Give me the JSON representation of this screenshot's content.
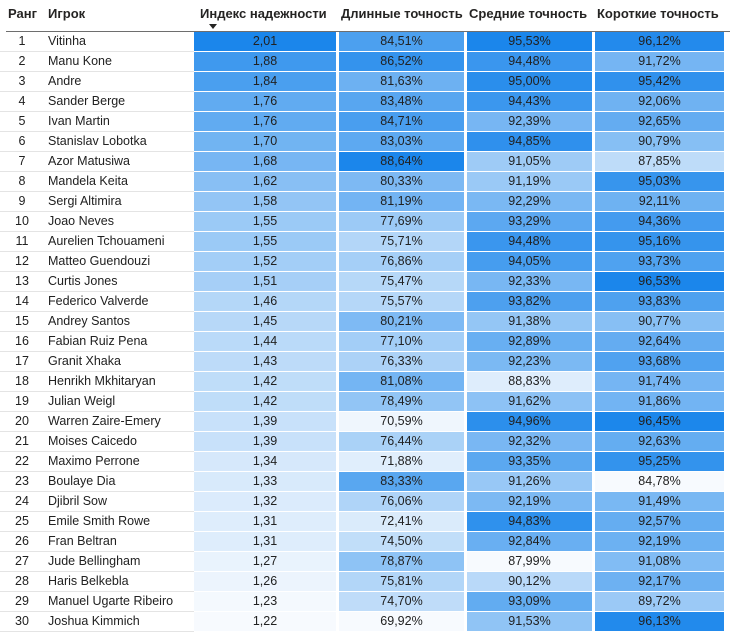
{
  "chart_data": {
    "type": "table",
    "title": "",
    "sorted_column": "Индекс надежности",
    "sort_direction": "desc",
    "columns": [
      {
        "key": "rank",
        "label": "Ранг",
        "heatmap": false
      },
      {
        "key": "player",
        "label": "Игрок",
        "heatmap": false
      },
      {
        "key": "index",
        "label": "Индекс надежности",
        "heatmap": true,
        "sorted": "desc"
      },
      {
        "key": "long",
        "label": "Длинные точность",
        "heatmap": true
      },
      {
        "key": "medium",
        "label": "Средние точность",
        "heatmap": true
      },
      {
        "key": "short",
        "label": "Короткие точность",
        "heatmap": true
      }
    ],
    "rows": [
      [
        "1",
        "Vitinha",
        "2,01",
        "84,51%",
        "95,53%",
        "96,12%"
      ],
      [
        "2",
        "Manu Kone",
        "1,88",
        "86,52%",
        "94,48%",
        "91,72%"
      ],
      [
        "3",
        "Andre",
        "1,84",
        "81,63%",
        "95,00%",
        "95,42%"
      ],
      [
        "4",
        "Sander Berge",
        "1,76",
        "83,48%",
        "94,43%",
        "92,06%"
      ],
      [
        "5",
        "Ivan Martin",
        "1,76",
        "84,71%",
        "92,39%",
        "92,65%"
      ],
      [
        "6",
        "Stanislav Lobotka",
        "1,70",
        "83,03%",
        "94,85%",
        "90,79%"
      ],
      [
        "7",
        "Azor Matusiwa",
        "1,68",
        "88,64%",
        "91,05%",
        "87,85%"
      ],
      [
        "8",
        "Mandela Keita",
        "1,62",
        "80,33%",
        "91,19%",
        "95,03%"
      ],
      [
        "9",
        "Sergi Altimira",
        "1,58",
        "81,19%",
        "92,29%",
        "92,11%"
      ],
      [
        "10",
        "Joao Neves",
        "1,55",
        "77,69%",
        "93,29%",
        "94,36%"
      ],
      [
        "11",
        "Aurelien Tchouameni",
        "1,55",
        "75,71%",
        "94,48%",
        "95,16%"
      ],
      [
        "12",
        "Matteo Guendouzi",
        "1,52",
        "76,86%",
        "94,05%",
        "93,73%"
      ],
      [
        "13",
        "Curtis Jones",
        "1,51",
        "75,47%",
        "92,33%",
        "96,53%"
      ],
      [
        "14",
        "Federico Valverde",
        "1,46",
        "75,57%",
        "93,82%",
        "93,83%"
      ],
      [
        "15",
        "Andrey Santos",
        "1,45",
        "80,21%",
        "91,38%",
        "90,77%"
      ],
      [
        "16",
        "Fabian Ruiz Pena",
        "1,44",
        "77,10%",
        "92,89%",
        "92,64%"
      ],
      [
        "17",
        "Granit Xhaka",
        "1,43",
        "76,33%",
        "92,23%",
        "93,68%"
      ],
      [
        "18",
        "Henrikh Mkhitaryan",
        "1,42",
        "81,08%",
        "88,83%",
        "91,74%"
      ],
      [
        "19",
        "Julian Weigl",
        "1,42",
        "78,49%",
        "91,62%",
        "91,86%"
      ],
      [
        "20",
        "Warren Zaire-Emery",
        "1,39",
        "70,59%",
        "94,96%",
        "96,45%"
      ],
      [
        "21",
        "Moises Caicedo",
        "1,39",
        "76,44%",
        "92,32%",
        "92,63%"
      ],
      [
        "22",
        "Maximo Perrone",
        "1,34",
        "71,88%",
        "93,35%",
        "95,25%"
      ],
      [
        "23",
        "Boulaye Dia",
        "1,33",
        "83,33%",
        "91,26%",
        "84,78%"
      ],
      [
        "24",
        "Djibril Sow",
        "1,32",
        "76,06%",
        "92,19%",
        "91,49%"
      ],
      [
        "25",
        "Emile Smith Rowe",
        "1,31",
        "72,41%",
        "94,83%",
        "92,57%"
      ],
      [
        "26",
        "Fran Beltran",
        "1,31",
        "74,50%",
        "92,84%",
        "92,19%"
      ],
      [
        "27",
        "Jude Bellingham",
        "1,27",
        "78,87%",
        "87,99%",
        "91,08%"
      ],
      [
        "28",
        "Haris Belkebla",
        "1,26",
        "75,81%",
        "90,12%",
        "92,17%"
      ],
      [
        "29",
        "Manuel Ugarte Ribeiro",
        "1,23",
        "74,70%",
        "93,09%",
        "89,72%"
      ],
      [
        "30",
        "Joshua Kimmich",
        "1,22",
        "69,92%",
        "91,53%",
        "96,13%"
      ]
    ]
  },
  "style": {
    "accent_max_color": "#1B86EB",
    "scale_min_color": "#F7FAFE",
    "header_text_color": "#252423",
    "body_text_color": "#212121",
    "row_separator_color": "#E4E4E4",
    "header_underline_color": "#6E6E6E"
  }
}
